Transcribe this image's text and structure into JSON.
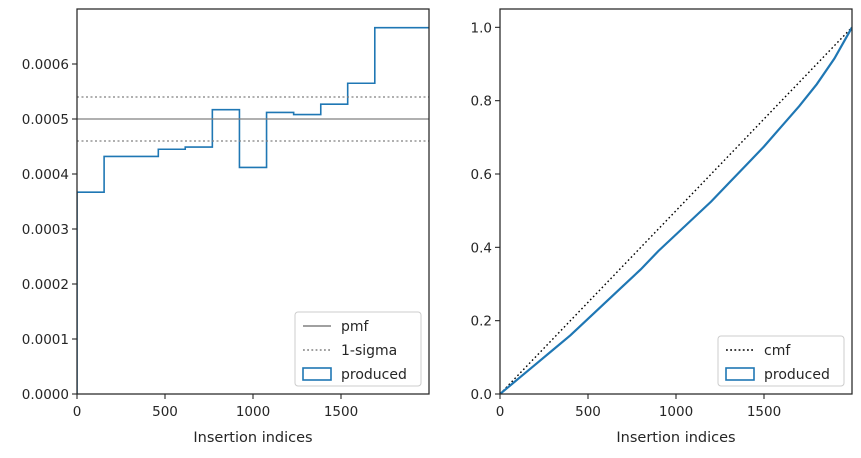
{
  "chart_data": [
    {
      "type": "step",
      "xlabel": "Insertion indices",
      "ylabel": "",
      "xlim": [
        0,
        2000
      ],
      "ylim": [
        0,
        0.0007
      ],
      "xticks": [
        "0",
        "500",
        "1000",
        "1500"
      ],
      "xtick_values": [
        0,
        500,
        1000,
        1500
      ],
      "yticks": [
        "0.0000",
        "0.0001",
        "0.0002",
        "0.0003",
        "0.0004",
        "0.0005",
        "0.0006"
      ],
      "ytick_values": [
        0,
        0.0001,
        0.0002,
        0.0003,
        0.0004,
        0.0005,
        0.0006
      ],
      "grid": false,
      "legend_position": "lower-right",
      "series": [
        {
          "name": "produced",
          "kind": "histogram-step",
          "color": "#1f77b4",
          "bin_edges": [
            0,
            154,
            308,
            462,
            615,
            769,
            923,
            1077,
            1231,
            1385,
            1538,
            1692,
            1846,
            2000
          ],
          "values": [
            0.000367,
            0.000432,
            0.000432,
            0.000445,
            0.000449,
            0.000517,
            0.000412,
            0.000512,
            0.000508,
            0.000527,
            0.000565,
            0.000666,
            0.000666
          ]
        },
        {
          "name": "pmf",
          "kind": "hline",
          "color": "#808080",
          "style": "solid",
          "y": 0.0005
        },
        {
          "name": "1-sigma",
          "kind": "hline-pair",
          "color": "#808080",
          "style": "dotted",
          "y": [
            0.00046,
            0.00054
          ]
        }
      ]
    },
    {
      "type": "line",
      "xlabel": "Insertion indices",
      "ylabel": "",
      "xlim": [
        0,
        2000
      ],
      "ylim": [
        0,
        1.05
      ],
      "xticks": [
        "0",
        "500",
        "1000",
        "1500"
      ],
      "xtick_values": [
        0,
        500,
        1000,
        1500
      ],
      "yticks": [
        "0.0",
        "0.2",
        "0.4",
        "0.6",
        "0.8",
        "1.0"
      ],
      "ytick_values": [
        0,
        0.2,
        0.4,
        0.6,
        0.8,
        1.0
      ],
      "grid": false,
      "legend_position": "lower-right",
      "series": [
        {
          "name": "cmf",
          "color": "#000000",
          "style": "dotted",
          "x": [
            0,
            2000
          ],
          "y": [
            0,
            1.0
          ]
        },
        {
          "name": "produced",
          "color": "#1f77b4",
          "style": "solid",
          "x": [
            0,
            100,
            200,
            300,
            400,
            500,
            600,
            700,
            800,
            900,
            1000,
            1100,
            1200,
            1300,
            1400,
            1500,
            1600,
            1700,
            1800,
            1900,
            2000
          ],
          "y": [
            0,
            0.04,
            0.08,
            0.12,
            0.16,
            0.205,
            0.25,
            0.295,
            0.34,
            0.39,
            0.435,
            0.48,
            0.525,
            0.575,
            0.625,
            0.675,
            0.73,
            0.785,
            0.845,
            0.915,
            1.0
          ]
        }
      ]
    }
  ]
}
